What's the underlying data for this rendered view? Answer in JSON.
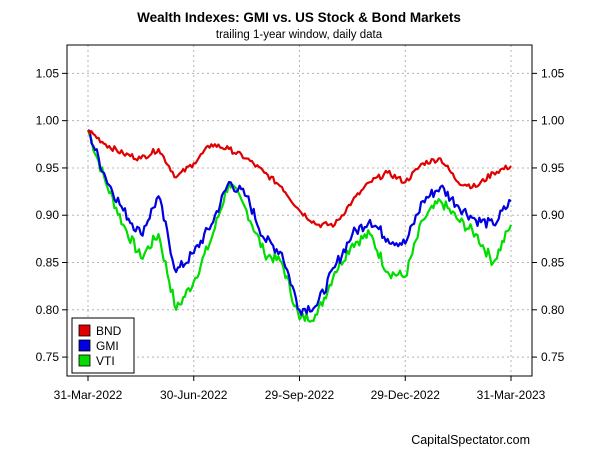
{
  "chart_data": {
    "type": "line",
    "title": "Wealth Indexes: GMI vs. US Stock & Bond Markets",
    "subtitle": "trailing 1-year window, daily data",
    "credit": "CapitalSpectator.com",
    "x_tick_labels": [
      "31-Mar-2022",
      "30-Jun-2022",
      "29-Sep-2022",
      "29-Dec-2022",
      "31-Mar-2023"
    ],
    "y_tick_labels": [
      "0.75",
      "0.80",
      "0.85",
      "0.90",
      "0.95",
      "1.00",
      "1.05"
    ],
    "ylim": [
      0.73,
      1.08
    ],
    "y_ticks": [
      0.75,
      0.8,
      0.85,
      0.9,
      0.95,
      1.0,
      1.05
    ],
    "grid": true,
    "legend_position": "bottom-left",
    "x": [
      "31-Mar-2022",
      "15-Apr-2022",
      "30-Apr-2022",
      "15-May-2022",
      "31-May-2022",
      "15-Jun-2022",
      "30-Jun-2022",
      "15-Jul-2022",
      "31-Jul-2022",
      "15-Aug-2022",
      "31-Aug-2022",
      "15-Sep-2022",
      "29-Sep-2022",
      "15-Oct-2022",
      "31-Oct-2022",
      "15-Nov-2022",
      "30-Nov-2022",
      "15-Dec-2022",
      "29-Dec-2022",
      "15-Jan-2023",
      "31-Jan-2023",
      "15-Feb-2023",
      "28-Feb-2023",
      "15-Mar-2023",
      "31-Mar-2023"
    ],
    "series": [
      {
        "name": "BND",
        "color": "#e00000",
        "values": [
          0.99,
          0.975,
          0.965,
          0.96,
          0.97,
          0.94,
          0.955,
          0.975,
          0.97,
          0.96,
          0.945,
          0.93,
          0.905,
          0.89,
          0.89,
          0.915,
          0.935,
          0.945,
          0.935,
          0.955,
          0.96,
          0.935,
          0.93,
          0.945,
          0.952
        ]
      },
      {
        "name": "GMI",
        "color": "#0000e0",
        "values": [
          0.99,
          0.94,
          0.905,
          0.88,
          0.92,
          0.84,
          0.86,
          0.89,
          0.935,
          0.92,
          0.875,
          0.86,
          0.8,
          0.805,
          0.845,
          0.88,
          0.895,
          0.875,
          0.87,
          0.915,
          0.93,
          0.91,
          0.895,
          0.89,
          0.915
        ]
      },
      {
        "name": "VTI",
        "color": "#00dd00",
        "values": [
          0.99,
          0.935,
          0.89,
          0.855,
          0.88,
          0.8,
          0.83,
          0.875,
          0.935,
          0.905,
          0.86,
          0.85,
          0.79,
          0.795,
          0.84,
          0.87,
          0.88,
          0.84,
          0.835,
          0.895,
          0.915,
          0.895,
          0.88,
          0.85,
          0.89
        ]
      }
    ]
  }
}
